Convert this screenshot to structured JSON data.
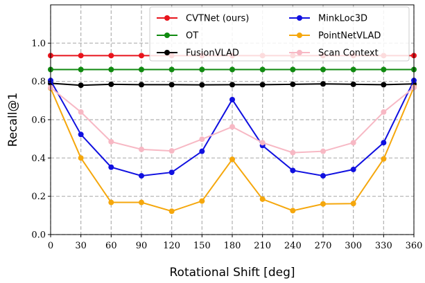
{
  "chart_data": {
    "type": "line",
    "xlabel": "Rotational Shift [deg]",
    "ylabel": "Recall@1",
    "xlim": [
      0,
      360
    ],
    "ylim": [
      0,
      1.2
    ],
    "xticks": [
      0,
      30,
      60,
      90,
      120,
      150,
      180,
      210,
      240,
      270,
      300,
      330,
      360
    ],
    "yticks": [
      0.0,
      0.2,
      0.4,
      0.6,
      0.8,
      1.0
    ],
    "ytick_labels": [
      "0.0",
      "0.2",
      "0.4",
      "0.6",
      "0.8",
      "1.0"
    ],
    "grid": true,
    "legend_position": "top-right",
    "x": [
      0,
      30,
      60,
      90,
      120,
      150,
      180,
      210,
      240,
      270,
      300,
      330,
      360
    ],
    "series": [
      {
        "name": "CVTNet (ours)",
        "color": "#e8141c",
        "values": [
          0.935,
          0.935,
          0.935,
          0.935,
          0.935,
          0.935,
          0.935,
          0.935,
          0.935,
          0.935,
          0.935,
          0.935,
          0.935
        ]
      },
      {
        "name": "OT",
        "color": "#108a10",
        "values": [
          0.862,
          0.862,
          0.862,
          0.862,
          0.862,
          0.862,
          0.862,
          0.862,
          0.862,
          0.862,
          0.862,
          0.862,
          0.862
        ]
      },
      {
        "name": "FusionVLAD",
        "color": "#000000",
        "values": [
          0.79,
          0.78,
          0.785,
          0.783,
          0.783,
          0.782,
          0.783,
          0.783,
          0.785,
          0.787,
          0.785,
          0.783,
          0.787
        ]
      },
      {
        "name": "MinkLoc3D",
        "color": "#1010e0",
        "values": [
          0.805,
          0.523,
          0.352,
          0.307,
          0.325,
          0.435,
          0.705,
          0.465,
          0.335,
          0.307,
          0.34,
          0.48,
          0.805
        ]
      },
      {
        "name": "PointNetVLAD",
        "color": "#f5a70c",
        "values": [
          0.765,
          0.4,
          0.168,
          0.168,
          0.122,
          0.175,
          0.393,
          0.185,
          0.125,
          0.16,
          0.162,
          0.395,
          0.77
        ]
      },
      {
        "name": "Scan Context",
        "color": "#f7b8c4",
        "values": [
          0.768,
          0.64,
          0.485,
          0.445,
          0.437,
          0.498,
          0.563,
          0.48,
          0.428,
          0.435,
          0.48,
          0.64,
          0.768
        ]
      }
    ]
  }
}
